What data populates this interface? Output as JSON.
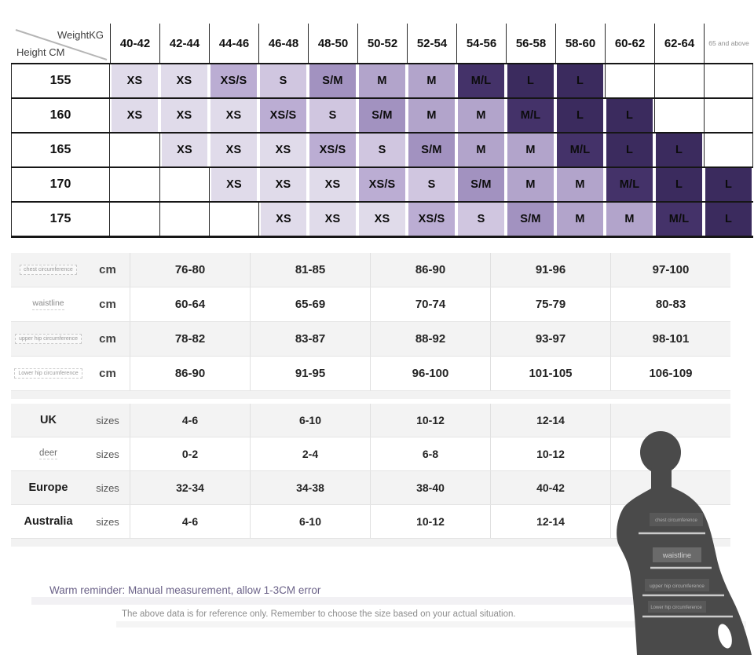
{
  "size_matrix": {
    "corner": {
      "top": "WeightKG",
      "bottom": "Height CM"
    },
    "weight_columns": [
      "40-42",
      "42-44",
      "44-46",
      "46-48",
      "48-50",
      "50-52",
      "52-54",
      "54-56",
      "56-58",
      "58-60",
      "60-62",
      "62-64",
      "65 and above"
    ],
    "rows": [
      {
        "height": "155",
        "sizes": [
          "XS",
          "XS",
          "XS/S",
          "S",
          "S/M",
          "M",
          "M",
          "M/L",
          "L",
          "L",
          "",
          "",
          ""
        ]
      },
      {
        "height": "160",
        "sizes": [
          "XS",
          "XS",
          "XS",
          "XS/S",
          "S",
          "S/M",
          "M",
          "M",
          "M/L",
          "L",
          "L",
          "",
          ""
        ]
      },
      {
        "height": "165",
        "sizes": [
          "",
          "XS",
          "XS",
          "XS",
          "XS/S",
          "S",
          "S/M",
          "M",
          "M",
          "M/L",
          "L",
          "L",
          ""
        ]
      },
      {
        "height": "170",
        "sizes": [
          "",
          "",
          "XS",
          "XS",
          "XS",
          "XS/S",
          "S",
          "S/M",
          "M",
          "M",
          "M/L",
          "L",
          "L"
        ]
      },
      {
        "height": "175",
        "sizes": [
          "",
          "",
          "",
          "XS",
          "XS",
          "XS",
          "XS/S",
          "S",
          "S/M",
          "M",
          "M",
          "M/L",
          "L"
        ]
      }
    ],
    "size_colors": {
      "XS": "#e0dbea",
      "XS/S": "#bbadd3",
      "S": "#d0c6e0",
      "S/M": "#a292c0",
      "M": "#b2a4cb",
      "M/L": "#443269",
      "L": "#3b2b5e"
    }
  },
  "measurements": {
    "unit_label": "cm",
    "rows": [
      {
        "label": "chest circumference",
        "values": [
          "76-80",
          "81-85",
          "86-90",
          "91-96",
          "97-100"
        ]
      },
      {
        "label": "waistline",
        "values": [
          "60-64",
          "65-69",
          "70-74",
          "75-79",
          "80-83"
        ]
      },
      {
        "label": "upper hip circumference",
        "values": [
          "78-82",
          "83-87",
          "88-92",
          "93-97",
          "98-101"
        ]
      },
      {
        "label": "Lower hip circumference",
        "values": [
          "86-90",
          "91-95",
          "96-100",
          "101-105",
          "106-109"
        ]
      }
    ]
  },
  "size_conversions": {
    "unit_label": "sizes",
    "rows": [
      {
        "region": "UK",
        "values": [
          "4-6",
          "6-10",
          "10-12",
          "12-14"
        ]
      },
      {
        "region": "deer",
        "values": [
          "0-2",
          "2-4",
          "6-8",
          "10-12"
        ]
      },
      {
        "region": "Europe",
        "values": [
          "32-34",
          "34-38",
          "38-40",
          "40-42"
        ]
      },
      {
        "region": "Australia",
        "values": [
          "4-6",
          "6-10",
          "10-12",
          "12-14"
        ]
      }
    ]
  },
  "notes": {
    "warm_reminder": "Warm reminder: Manual measurement, allow 1-3CM error",
    "disclaimer": "The above data is for reference only. Remember to choose the size based on your actual situation."
  },
  "figure_labels": {
    "chest": "chest circumference",
    "waist": "waistline",
    "upper_hip": "upper hip circumference",
    "lower_hip": "Lower hip circumference"
  },
  "colors": {
    "grid_line": "#161616",
    "band_gray": "#f3f3f3",
    "reminder_text": "#6b6288",
    "silhouette": "#4a4a4a",
    "measure_line": "#cbcbcb"
  },
  "chart_data": [
    {
      "type": "table",
      "columns": [
        "Height CM \\ WeightKG",
        "40-42",
        "42-44",
        "44-46",
        "46-48",
        "48-50",
        "50-52",
        "52-54",
        "54-56",
        "56-58",
        "58-60",
        "60-62",
        "62-64",
        "65 and above"
      ],
      "rows": [
        [
          "155",
          "XS",
          "XS",
          "XS/S",
          "S",
          "S/M",
          "M",
          "M",
          "M/L",
          "L",
          "L",
          "",
          "",
          ""
        ],
        [
          "160",
          "XS",
          "XS",
          "XS",
          "XS/S",
          "S",
          "S/M",
          "M",
          "M",
          "M/L",
          "L",
          "L",
          "",
          ""
        ],
        [
          "165",
          "",
          "XS",
          "XS",
          "XS",
          "XS/S",
          "S",
          "S/M",
          "M",
          "M",
          "M/L",
          "L",
          "L",
          ""
        ],
        [
          "170",
          "",
          "",
          "XS",
          "XS",
          "XS",
          "XS/S",
          "S",
          "S/M",
          "M",
          "M",
          "M/L",
          "L",
          "L"
        ],
        [
          "175",
          "",
          "",
          "",
          "XS",
          "XS",
          "XS",
          "XS/S",
          "S",
          "S/M",
          "M",
          "M",
          "M/L",
          "L"
        ]
      ]
    },
    {
      "type": "table",
      "rows": [
        [
          "chest circumference",
          "cm",
          "76-80",
          "81-85",
          "86-90",
          "91-96",
          "97-100"
        ],
        [
          "waistline",
          "cm",
          "60-64",
          "65-69",
          "70-74",
          "75-79",
          "80-83"
        ],
        [
          "upper hip circumference",
          "cm",
          "78-82",
          "83-87",
          "88-92",
          "93-97",
          "98-101"
        ],
        [
          "Lower hip circumference",
          "cm",
          "86-90",
          "91-95",
          "96-100",
          "101-105",
          "106-109"
        ]
      ]
    },
    {
      "type": "table",
      "rows": [
        [
          "UK",
          "sizes",
          "4-6",
          "6-10",
          "10-12",
          "12-14"
        ],
        [
          "deer",
          "sizes",
          "0-2",
          "2-4",
          "6-8",
          "10-12"
        ],
        [
          "Europe",
          "sizes",
          "32-34",
          "34-38",
          "38-40",
          "40-42"
        ],
        [
          "Australia",
          "sizes",
          "4-6",
          "6-10",
          "10-12",
          "12-14"
        ]
      ]
    }
  ]
}
